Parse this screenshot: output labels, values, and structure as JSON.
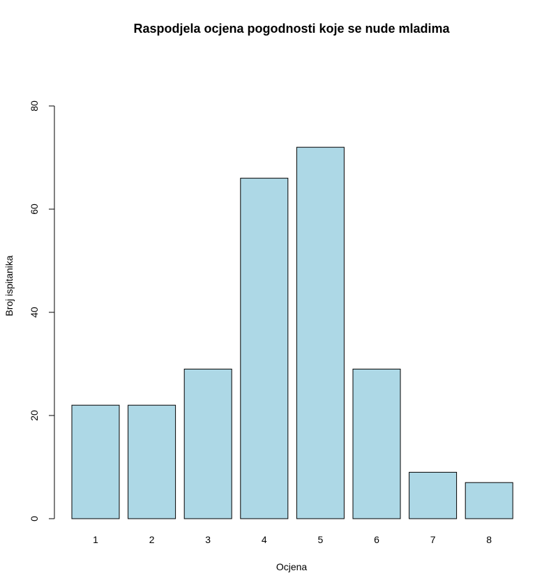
{
  "chart_data": {
    "type": "bar",
    "title": "Raspodjela ocjena pogodnosti koje se nude mladima",
    "xlabel": "Ocjena",
    "ylabel": "Broj ispitanika",
    "categories": [
      "1",
      "2",
      "3",
      "4",
      "5",
      "6",
      "7",
      "8"
    ],
    "values": [
      22,
      22,
      29,
      66,
      72,
      29,
      9,
      7
    ],
    "ylim": [
      0,
      80
    ],
    "yticks": [
      0,
      20,
      40,
      60,
      80
    ],
    "bar_color": "#add8e6",
    "grid": false,
    "legend": "none"
  }
}
